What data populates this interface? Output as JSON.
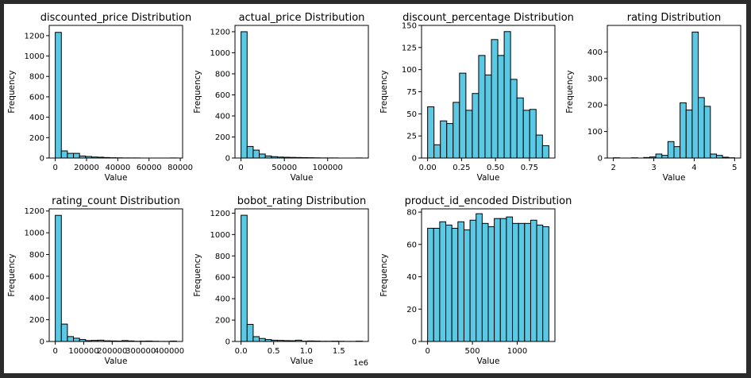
{
  "chart_data": [
    {
      "type": "bar",
      "title": "discounted_price Distribution",
      "xlabel": "Value",
      "ylabel": "Frequency",
      "bin_start": 0,
      "bin_width": 3880,
      "counts": [
        1232,
        70,
        46,
        46,
        20,
        15,
        10,
        8,
        5,
        3,
        2,
        1,
        1,
        1,
        0,
        0,
        0,
        0,
        0,
        1
      ],
      "xlim": [
        -3880,
        81480
      ],
      "ylim": [
        0,
        1300
      ],
      "xticks": [
        0,
        20000,
        40000,
        60000,
        80000
      ],
      "xtick_labels": [
        "0",
        "20000",
        "40000",
        "60000",
        "80000"
      ],
      "yticks": [
        0,
        200,
        400,
        600,
        800,
        1000,
        1200
      ],
      "ytick_labels": [
        "0",
        "200",
        "400",
        "600",
        "800",
        "1000",
        "1200"
      ]
    },
    {
      "type": "bar",
      "title": "actual_price Distribution",
      "xlabel": "Value",
      "ylabel": "Frequency",
      "bin_start": 39,
      "bin_width": 6998,
      "counts": [
        1200,
        110,
        75,
        38,
        20,
        13,
        9,
        7,
        6,
        5,
        4,
        3,
        2,
        1,
        1,
        1,
        0,
        0,
        0,
        1
      ],
      "xlim": [
        -6960,
        146960
      ],
      "ylim": [
        0,
        1260
      ],
      "xticks": [
        0,
        50000,
        100000
      ],
      "xtick_labels": [
        "0",
        "50000",
        "100000"
      ],
      "yticks": [
        0,
        200,
        400,
        600,
        800,
        1000,
        1200
      ],
      "ytick_labels": [
        "0",
        "200",
        "400",
        "600",
        "800",
        "1000",
        "1200"
      ]
    },
    {
      "type": "bar",
      "title": "discount_percentage Distribution",
      "xlabel": "Value",
      "ylabel": "Frequency",
      "bin_start": 0,
      "bin_width": 0.047,
      "counts": [
        58,
        15,
        42,
        39,
        63,
        96,
        54,
        73,
        116,
        94,
        134,
        116,
        143,
        89,
        68,
        54,
        55,
        26,
        14
      ],
      "xlim": [
        -0.0447,
        0.9377
      ],
      "ylim": [
        0,
        150
      ],
      "xticks": [
        0,
        0.25,
        0.5,
        0.75
      ],
      "xtick_labels": [
        "0.00",
        "0.25",
        "0.50",
        "0.75"
      ],
      "yticks": [
        0,
        25,
        50,
        75,
        100,
        125,
        150
      ],
      "ytick_labels": [
        "0",
        "25",
        "50",
        "75",
        "100",
        "125",
        "150"
      ]
    },
    {
      "type": "bar",
      "title": "rating Distribution",
      "xlabel": "Value",
      "ylabel": "Frequency",
      "bin_start": 2,
      "bin_width": 0.15,
      "counts": [
        1,
        0,
        0,
        1,
        0,
        2,
        4,
        15,
        10,
        62,
        43,
        208,
        181,
        475,
        228,
        195,
        15,
        10,
        3,
        1
      ],
      "xlim": [
        1.85,
        5.15
      ],
      "ylim": [
        0,
        500
      ],
      "xticks": [
        2,
        3,
        4,
        5
      ],
      "xtick_labels": [
        "2",
        "3",
        "4",
        "5"
      ],
      "yticks": [
        0,
        100,
        200,
        300,
        400
      ],
      "ytick_labels": [
        "0",
        "100",
        "200",
        "300",
        "400"
      ]
    },
    {
      "type": "bar",
      "title": "rating_count Distribution",
      "xlabel": "Value",
      "ylabel": "Frequency",
      "bin_start": 2,
      "bin_width": 21300,
      "counts": [
        1160,
        160,
        45,
        30,
        18,
        8,
        10,
        12,
        6,
        5,
        4,
        8,
        5,
        2,
        3,
        4,
        2,
        1,
        1,
        4
      ],
      "xlim": [
        -21300,
        447300
      ],
      "ylim": [
        0,
        1220
      ],
      "xticks": [
        0,
        100000,
        200000,
        300000,
        400000
      ],
      "xtick_labels": [
        "0",
        "100000",
        "200000",
        "300000",
        "400000"
      ],
      "yticks": [
        0,
        200,
        400,
        600,
        800,
        1000,
        1200
      ],
      "ytick_labels": [
        "0",
        "200",
        "400",
        "600",
        "800",
        "1000",
        "1200"
      ]
    },
    {
      "type": "bar",
      "title": "bobot_rating Distribution",
      "xlabel": "Value",
      "ylabel": "Frequency",
      "bin_start": 0,
      "bin_width": 93000,
      "counts": [
        1180,
        160,
        45,
        28,
        18,
        12,
        10,
        8,
        7,
        12,
        3,
        5,
        4,
        2,
        2,
        3,
        2,
        1,
        1,
        3
      ],
      "xlim": [
        -93000,
        1953000
      ],
      "ylim": [
        0,
        1240
      ],
      "xticks": [
        0,
        500000,
        1000000,
        1500000
      ],
      "xtick_labels": [
        "0.0",
        "0.5",
        "1.0",
        "1.5"
      ],
      "x_offset_label": "1e6",
      "yticks": [
        0,
        200,
        400,
        600,
        800,
        1000,
        1200
      ],
      "ytick_labels": [
        "0",
        "200",
        "400",
        "600",
        "800",
        "1000",
        "1200"
      ]
    },
    {
      "type": "bar",
      "title": "product_id_encoded Distribution",
      "xlabel": "Value",
      "ylabel": "Frequency",
      "bin_start": 0,
      "bin_width": 67.65,
      "counts": [
        70,
        70,
        74,
        72,
        70,
        74,
        69,
        75,
        79,
        73,
        71,
        76,
        76,
        77,
        73,
        73,
        73,
        75,
        72,
        71
      ],
      "xlim": [
        -67.65,
        1420.65
      ],
      "ylim": [
        0,
        82
      ],
      "xticks": [
        0,
        500,
        1000
      ],
      "xtick_labels": [
        "0",
        "500",
        "1000"
      ],
      "yticks": [
        0,
        20,
        40,
        60,
        80
      ],
      "ytick_labels": [
        "0",
        "20",
        "40",
        "60",
        "80"
      ]
    }
  ]
}
